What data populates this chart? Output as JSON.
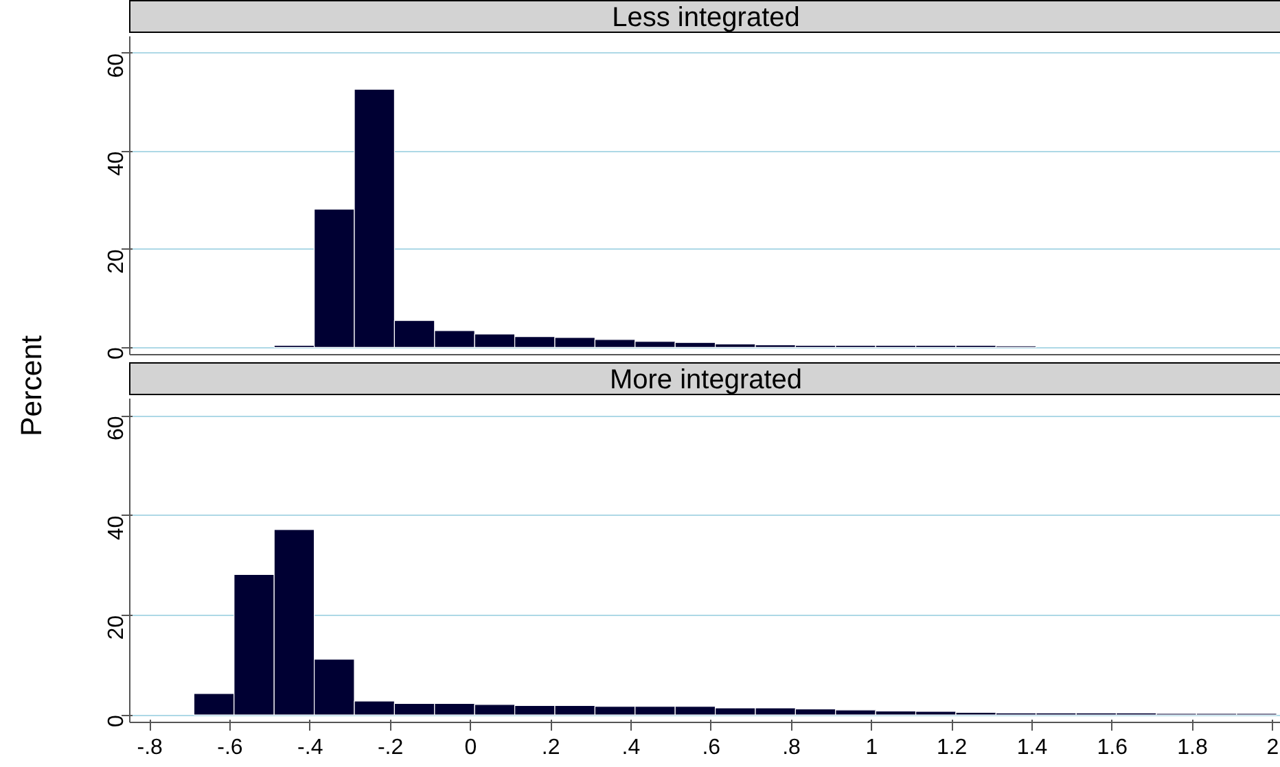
{
  "chart_data": [
    {
      "type": "histogram",
      "title": "Less integrated",
      "ylabel": "Percent",
      "color": "#000033",
      "bins": [
        -0.49,
        -0.39,
        -0.29,
        -0.19,
        -0.09,
        0.01,
        0.11,
        0.21,
        0.31,
        0.41,
        0.51,
        0.61,
        0.71,
        0.81,
        0.91,
        1.01,
        1.11,
        1.21,
        1.31,
        1.41
      ],
      "values": [
        0.4,
        28.2,
        52.7,
        5.5,
        3.4,
        2.7,
        2.2,
        2.0,
        1.6,
        1.2,
        1.0,
        0.7,
        0.5,
        0.4,
        0.4,
        0.4,
        0.4,
        0.4,
        0.3
      ],
      "xlim": [
        -0.85,
        2.02
      ],
      "ylim": [
        -1.5,
        63.5
      ],
      "yticks": [
        0,
        20,
        40,
        60
      ],
      "grid": "y",
      "tick_labels": "y"
    },
    {
      "type": "histogram",
      "title": "More integrated",
      "color": "#000033",
      "bins": [
        -0.69,
        -0.59,
        -0.49,
        -0.39,
        -0.29,
        -0.19,
        -0.09,
        0.01,
        0.11,
        0.21,
        0.31,
        0.41,
        0.51,
        0.61,
        0.71,
        0.81,
        0.91,
        1.01,
        1.11,
        1.21,
        1.31,
        1.41,
        1.51,
        1.61,
        1.71,
        1.81,
        1.91,
        2.01
      ],
      "values": [
        4.3,
        28.2,
        37.2,
        11.2,
        2.8,
        2.3,
        2.3,
        2.1,
        1.9,
        1.9,
        1.7,
        1.7,
        1.7,
        1.4,
        1.4,
        1.2,
        1.0,
        0.8,
        0.7,
        0.5,
        0.4,
        0.4,
        0.4,
        0.4,
        0.3,
        0.3,
        0.3
      ],
      "xlim": [
        -0.85,
        2.02
      ],
      "ylim": [
        -1.5,
        63.5
      ],
      "xticks": [
        {
          "value": -0.8,
          "label": "-.8"
        },
        {
          "value": -0.6,
          "label": "-.6"
        },
        {
          "value": -0.4,
          "label": "-.4"
        },
        {
          "value": -0.2,
          "label": "-.2"
        },
        {
          "value": 0,
          "label": "0"
        },
        {
          "value": 0.2,
          "label": ".2"
        },
        {
          "value": 0.4,
          "label": ".4"
        },
        {
          "value": 0.6,
          "label": ".6"
        },
        {
          "value": 0.8,
          "label": ".8"
        },
        {
          "value": 1,
          "label": "1"
        },
        {
          "value": 1.2,
          "label": "1.2"
        },
        {
          "value": 1.4,
          "label": "1.4"
        },
        {
          "value": 1.6,
          "label": "1.6"
        },
        {
          "value": 1.8,
          "label": "1.8"
        },
        {
          "value": 2,
          "label": "2"
        }
      ],
      "yticks": [
        0,
        20,
        40,
        60
      ],
      "grid": "y"
    }
  ]
}
